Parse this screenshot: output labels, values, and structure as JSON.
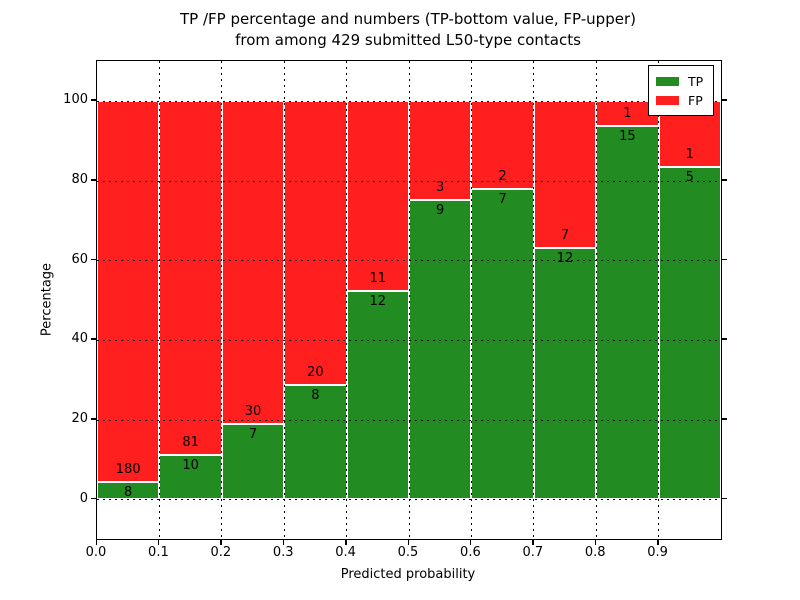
{
  "title": {
    "line1": "TP /FP percentage and numbers (TP-bottom value, FP-upper)",
    "line2": "from among 429 submitted L50-type contacts"
  },
  "legend": {
    "entries": [
      {
        "label": "TP",
        "color": "#228b22"
      },
      {
        "label": "FP",
        "color": "#ff1f1f"
      }
    ]
  },
  "chart_data": {
    "type": "bar",
    "stacked": true,
    "normalized_to_percent": true,
    "title": "TP /FP percentage and numbers (TP-bottom value, FP-upper) from among 429 submitted L50-type contacts",
    "xlabel": "Predicted probability",
    "ylabel": "Percentage",
    "total_contacts": 429,
    "grid": "dotted",
    "legend_position": "upper right",
    "xlim": [
      0.0,
      1.0
    ],
    "ylim": [
      -10,
      110
    ],
    "x_tick_labels": [
      "0.0",
      "0.1",
      "0.2",
      "0.3",
      "0.4",
      "0.5",
      "0.6",
      "0.7",
      "0.8",
      "0.9"
    ],
    "y_tick_values": [
      0,
      20,
      40,
      60,
      80,
      100
    ],
    "bin_width": 0.1,
    "bin_starts": [
      0.0,
      0.1,
      0.2,
      0.3,
      0.4,
      0.5,
      0.6,
      0.7,
      0.8,
      0.9
    ],
    "series": [
      {
        "name": "TP",
        "color": "#228b22",
        "counts": [
          8,
          10,
          7,
          8,
          12,
          9,
          7,
          12,
          15,
          5
        ]
      },
      {
        "name": "FP",
        "color": "#ff1f1f",
        "counts": [
          180,
          81,
          30,
          20,
          11,
          3,
          2,
          7,
          1,
          1
        ]
      }
    ],
    "tp_percent_approx": [
      4.3,
      11.0,
      18.9,
      28.6,
      52.2,
      75.0,
      77.8,
      63.2,
      93.8,
      83.3
    ]
  }
}
